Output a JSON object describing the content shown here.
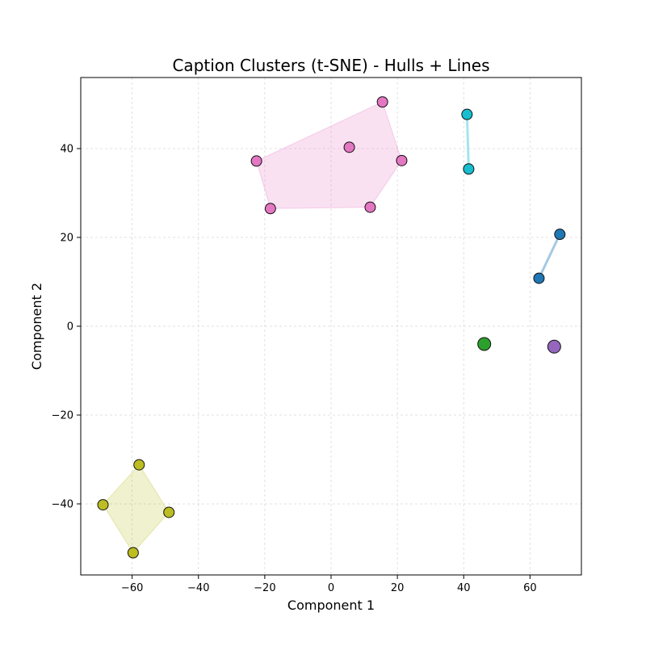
{
  "chart_data": {
    "type": "scatter",
    "title": "Caption Clusters (t-SNE) - Hulls + Lines",
    "xlabel": "Component 1",
    "ylabel": "Component 2",
    "xlim": [
      -75.5,
      75.5
    ],
    "ylim": [
      -56,
      56
    ],
    "xticks": [
      -60,
      -40,
      -20,
      0,
      20,
      40,
      60
    ],
    "yticks": [
      -40,
      -20,
      0,
      20,
      40
    ],
    "grid": true,
    "legend": "none",
    "clusters": [
      {
        "color": "#e377c2",
        "connector": "hull",
        "points": [
          [
            15.5,
            50.5
          ],
          [
            5.5,
            40.3
          ],
          [
            -22.5,
            37.2
          ],
          [
            21.3,
            37.3
          ],
          [
            -18.3,
            26.5
          ],
          [
            11.8,
            26.8
          ]
        ]
      },
      {
        "color": "#17becf",
        "connector": "line",
        "points": [
          [
            41.0,
            47.7
          ],
          [
            41.5,
            35.4
          ]
        ]
      },
      {
        "color": "#1f77b4",
        "connector": "line",
        "points": [
          [
            69.0,
            20.7
          ],
          [
            62.7,
            10.8
          ]
        ]
      },
      {
        "color": "#2ca02c",
        "connector": "none",
        "points": [
          [
            46.2,
            -4.0
          ]
        ]
      },
      {
        "color": "#9467bd",
        "connector": "none",
        "points": [
          [
            67.3,
            -4.6
          ]
        ]
      },
      {
        "color": "#bcbd22",
        "connector": "hull",
        "points": [
          [
            -57.9,
            -31.2
          ],
          [
            -68.8,
            -40.2
          ],
          [
            -48.9,
            -41.9
          ],
          [
            -59.7,
            -51.0
          ]
        ]
      }
    ]
  }
}
